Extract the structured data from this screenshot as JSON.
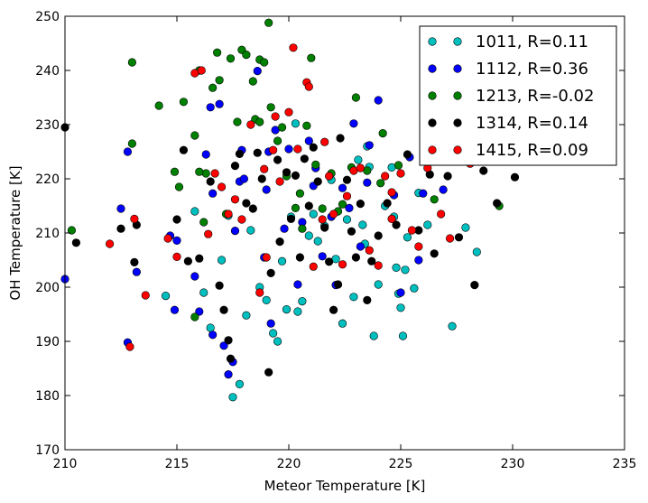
{
  "chart_data": {
    "type": "scatter",
    "xlabel": "Meteor Temperature [K]",
    "ylabel": "OH Temperature [K]",
    "xlim": [
      210,
      235
    ],
    "ylim": [
      170,
      250
    ],
    "xticks": [
      "210",
      "215",
      "220",
      "225",
      "230",
      "235"
    ],
    "yticks": [
      "170",
      "180",
      "190",
      "200",
      "210",
      "220",
      "230",
      "240",
      "250"
    ],
    "grid": false,
    "legend_position": "top-right",
    "series": [
      {
        "name": "1011, R=0.11",
        "color": "#00BFBF",
        "points": [
          [
            214.5,
            198.4
          ],
          [
            215.8,
            214.0
          ],
          [
            216.2,
            199.0
          ],
          [
            216.5,
            192.5
          ],
          [
            217.0,
            205.0
          ],
          [
            217.3,
            213.2
          ],
          [
            217.5,
            179.7
          ],
          [
            217.8,
            182.1
          ],
          [
            218.1,
            194.8
          ],
          [
            218.3,
            210.5
          ],
          [
            218.7,
            200.0
          ],
          [
            219.0,
            197.6
          ],
          [
            219.3,
            191.5
          ],
          [
            219.5,
            190.0
          ],
          [
            219.7,
            204.8
          ],
          [
            219.9,
            195.9
          ],
          [
            220.1,
            213.0
          ],
          [
            220.3,
            230.2
          ],
          [
            220.4,
            195.5
          ],
          [
            220.6,
            197.4
          ],
          [
            220.9,
            209.5
          ],
          [
            221.1,
            213.5
          ],
          [
            221.3,
            208.5
          ],
          [
            221.6,
            211.3
          ],
          [
            221.9,
            219.8
          ],
          [
            222.1,
            205.2
          ],
          [
            222.4,
            193.3
          ],
          [
            222.6,
            212.5
          ],
          [
            222.9,
            198.2
          ],
          [
            223.1,
            223.5
          ],
          [
            223.3,
            211.5
          ],
          [
            223.4,
            208.0
          ],
          [
            223.5,
            226.0
          ],
          [
            223.6,
            222.2
          ],
          [
            223.8,
            191.0
          ],
          [
            224.0,
            200.5
          ],
          [
            224.3,
            215.0
          ],
          [
            224.6,
            222.1
          ],
          [
            224.7,
            213.0
          ],
          [
            224.8,
            203.6
          ],
          [
            224.9,
            198.8
          ],
          [
            225.0,
            196.2
          ],
          [
            225.1,
            191.0
          ],
          [
            225.2,
            203.2
          ],
          [
            225.3,
            209.2
          ],
          [
            225.6,
            199.8
          ],
          [
            225.8,
            217.4
          ],
          [
            226.2,
            211.5
          ],
          [
            227.3,
            192.8
          ],
          [
            227.9,
            211.0
          ],
          [
            228.4,
            206.5
          ],
          [
            229.0,
            223.8
          ]
        ]
      },
      {
        "name": "1112, R=0.36",
        "color": "#0000FF",
        "points": [
          [
            210.0,
            201.5
          ],
          [
            212.8,
            225.0
          ],
          [
            212.8,
            189.8
          ],
          [
            213.2,
            202.8
          ],
          [
            214.9,
            195.8
          ],
          [
            215.0,
            208.6
          ],
          [
            215.8,
            202.0
          ],
          [
            216.0,
            195.5
          ],
          [
            216.3,
            224.5
          ],
          [
            216.5,
            233.2
          ],
          [
            216.6,
            191.2
          ],
          [
            216.9,
            233.8
          ],
          [
            217.1,
            189.2
          ],
          [
            217.3,
            183.9
          ],
          [
            217.5,
            186.2
          ],
          [
            217.6,
            210.4
          ],
          [
            217.8,
            219.5
          ],
          [
            218.0,
            220.0
          ],
          [
            218.6,
            239.9
          ],
          [
            218.9,
            205.5
          ],
          [
            219.0,
            218.0
          ],
          [
            219.2,
            193.3
          ],
          [
            219.4,
            229.0
          ],
          [
            219.8,
            210.8
          ],
          [
            220.0,
            225.5
          ],
          [
            220.4,
            200.5
          ],
          [
            220.6,
            212.0
          ],
          [
            220.9,
            227.0
          ],
          [
            221.2,
            222.0
          ],
          [
            221.5,
            205.7
          ],
          [
            221.9,
            213.0
          ],
          [
            222.1,
            200.4
          ],
          [
            222.4,
            218.3
          ],
          [
            222.7,
            214.6
          ],
          [
            222.9,
            230.2
          ],
          [
            223.2,
            207.5
          ],
          [
            223.6,
            226.2
          ],
          [
            224.0,
            234.5
          ],
          [
            224.7,
            217.0
          ],
          [
            225.0,
            199.0
          ],
          [
            225.4,
            224.0
          ],
          [
            225.8,
            205.0
          ],
          [
            226.0,
            217.3
          ],
          [
            226.9,
            218.0
          ],
          [
            212.5,
            214.5
          ],
          [
            214.7,
            209.5
          ],
          [
            216.6,
            217.3
          ],
          [
            217.9,
            225.3
          ],
          [
            219.1,
            225.0
          ],
          [
            221.1,
            218.7
          ],
          [
            223.5,
            219.3
          ]
        ]
      },
      {
        "name": "1213, R=-0.02",
        "color": "#008000",
        "points": [
          [
            210.3,
            210.5
          ],
          [
            213.0,
            241.5
          ],
          [
            213.0,
            226.5
          ],
          [
            214.2,
            233.5
          ],
          [
            214.9,
            221.3
          ],
          [
            215.1,
            218.5
          ],
          [
            215.3,
            234.2
          ],
          [
            215.8,
            228.0
          ],
          [
            216.0,
            240.0
          ],
          [
            216.3,
            221.0
          ],
          [
            216.6,
            236.8
          ],
          [
            216.8,
            243.3
          ],
          [
            216.9,
            238.2
          ],
          [
            217.4,
            242.2
          ],
          [
            217.7,
            230.5
          ],
          [
            217.9,
            243.8
          ],
          [
            218.1,
            242.9
          ],
          [
            218.4,
            238.0
          ],
          [
            218.5,
            231.0
          ],
          [
            218.7,
            242.0
          ],
          [
            218.9,
            241.5
          ],
          [
            219.1,
            248.8
          ],
          [
            219.2,
            233.2
          ],
          [
            219.5,
            227.0
          ],
          [
            219.9,
            220.5
          ],
          [
            220.3,
            214.6
          ],
          [
            220.6,
            210.8
          ],
          [
            220.8,
            229.8
          ],
          [
            221.0,
            242.3
          ],
          [
            221.2,
            222.6
          ],
          [
            221.5,
            214.5
          ],
          [
            221.9,
            221.0
          ],
          [
            222.4,
            215.3
          ],
          [
            222.8,
            222.1
          ],
          [
            223.0,
            235.0
          ],
          [
            223.5,
            221.5
          ],
          [
            224.1,
            219.2
          ],
          [
            224.2,
            228.4
          ],
          [
            224.9,
            222.5
          ],
          [
            226.5,
            216.2
          ],
          [
            229.4,
            215.0
          ],
          [
            215.8,
            194.5
          ],
          [
            216.0,
            221.3
          ],
          [
            216.2,
            212.0
          ],
          [
            217.2,
            213.5
          ],
          [
            218.7,
            230.5
          ],
          [
            219.7,
            229.5
          ],
          [
            220.5,
            217.3
          ],
          [
            222.2,
            214.0
          ]
        ]
      },
      {
        "name": "1314, R=0.14",
        "color": "#000000",
        "points": [
          [
            210.0,
            229.5
          ],
          [
            210.5,
            208.2
          ],
          [
            212.5,
            210.8
          ],
          [
            213.1,
            204.6
          ],
          [
            213.2,
            211.5
          ],
          [
            215.0,
            212.5
          ],
          [
            215.3,
            225.3
          ],
          [
            215.5,
            204.8
          ],
          [
            216.0,
            205.3
          ],
          [
            216.5,
            219.5
          ],
          [
            216.9,
            200.3
          ],
          [
            217.1,
            195.8
          ],
          [
            217.3,
            190.2
          ],
          [
            217.4,
            186.8
          ],
          [
            217.6,
            222.4
          ],
          [
            217.8,
            224.6
          ],
          [
            218.1,
            215.5
          ],
          [
            218.4,
            214.5
          ],
          [
            218.6,
            224.8
          ],
          [
            218.8,
            220.0
          ],
          [
            219.1,
            184.3
          ],
          [
            219.2,
            202.6
          ],
          [
            219.5,
            223.5
          ],
          [
            219.6,
            208.4
          ],
          [
            219.9,
            221.2
          ],
          [
            220.1,
            212.6
          ],
          [
            220.3,
            220.6
          ],
          [
            220.5,
            205.5
          ],
          [
            220.7,
            223.7
          ],
          [
            220.9,
            215.0
          ],
          [
            221.1,
            225.8
          ],
          [
            221.3,
            219.5
          ],
          [
            221.6,
            211.0
          ],
          [
            221.8,
            204.7
          ],
          [
            222.0,
            195.8
          ],
          [
            222.2,
            200.5
          ],
          [
            222.3,
            227.5
          ],
          [
            222.6,
            219.8
          ],
          [
            222.8,
            210.3
          ],
          [
            223.0,
            205.5
          ],
          [
            223.2,
            215.4
          ],
          [
            223.5,
            197.6
          ],
          [
            223.7,
            204.8
          ],
          [
            224.0,
            209.5
          ],
          [
            224.4,
            215.5
          ],
          [
            224.8,
            211.5
          ],
          [
            225.3,
            224.5
          ],
          [
            225.8,
            210.5
          ],
          [
            226.3,
            220.8
          ],
          [
            226.5,
            206.2
          ],
          [
            227.1,
            220.5
          ],
          [
            227.6,
            209.2
          ],
          [
            228.0,
            224.5
          ],
          [
            228.3,
            200.4
          ],
          [
            228.7,
            221.5
          ],
          [
            229.3,
            215.5
          ],
          [
            230.1,
            220.3
          ]
        ]
      },
      {
        "name": "1415, R=0.09",
        "color": "#FF0000",
        "points": [
          [
            212.0,
            208.0
          ],
          [
            212.9,
            189.0
          ],
          [
            213.1,
            212.6
          ],
          [
            213.6,
            198.5
          ],
          [
            214.6,
            209.0
          ],
          [
            215.0,
            205.6
          ],
          [
            215.8,
            239.5
          ],
          [
            216.1,
            240.0
          ],
          [
            216.7,
            221.0
          ],
          [
            217.0,
            218.5
          ],
          [
            217.3,
            213.5
          ],
          [
            217.6,
            216.2
          ],
          [
            217.9,
            212.5
          ],
          [
            218.3,
            230.0
          ],
          [
            218.7,
            199.0
          ],
          [
            218.9,
            221.8
          ],
          [
            219.0,
            205.5
          ],
          [
            219.4,
            231.5
          ],
          [
            219.6,
            219.5
          ],
          [
            220.0,
            232.3
          ],
          [
            220.2,
            244.2
          ],
          [
            220.4,
            225.5
          ],
          [
            220.8,
            237.8
          ],
          [
            220.9,
            237.0
          ],
          [
            221.1,
            203.8
          ],
          [
            221.5,
            212.5
          ],
          [
            221.8,
            220.5
          ],
          [
            222.0,
            213.5
          ],
          [
            222.4,
            204.2
          ],
          [
            222.6,
            216.8
          ],
          [
            222.9,
            221.5
          ],
          [
            223.2,
            222.0
          ],
          [
            223.6,
            206.8
          ],
          [
            224.0,
            204.0
          ],
          [
            224.3,
            220.5
          ],
          [
            224.6,
            217.5
          ],
          [
            225.0,
            221.0
          ],
          [
            225.5,
            210.5
          ],
          [
            225.8,
            207.5
          ],
          [
            226.2,
            222.0
          ],
          [
            226.8,
            213.5
          ],
          [
            227.2,
            209.0
          ],
          [
            228.1,
            222.8
          ],
          [
            228.5,
            224.8
          ],
          [
            216.4,
            209.8
          ],
          [
            219.3,
            225.3
          ],
          [
            221.6,
            226.8
          ],
          [
            224.6,
            212.6
          ]
        ]
      }
    ]
  }
}
